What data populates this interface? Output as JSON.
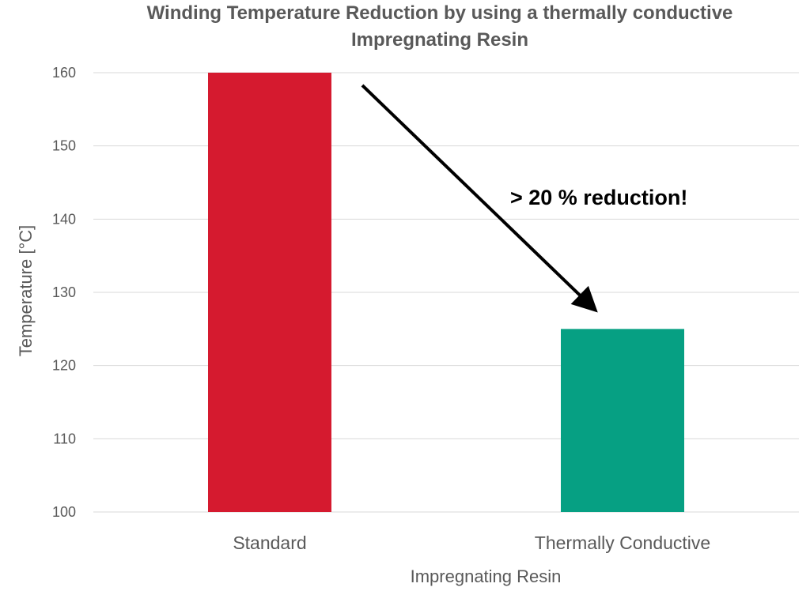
{
  "chart_data": {
    "type": "bar",
    "title_lines": [
      "Winding Temperature Reduction by using a thermally conductive",
      "Impregnating Resin"
    ],
    "xlabel": "Impregnating Resin",
    "ylabel": "Temperature [°C]",
    "categories": [
      "Standard",
      "Thermally Conductive"
    ],
    "values": [
      160,
      125
    ],
    "bar_colors": [
      "#d51a2f",
      "#06a083"
    ],
    "ylim": [
      100,
      160
    ],
    "yticks": [
      "100",
      "110",
      "120",
      "130",
      "140",
      "150",
      "160"
    ],
    "grid": true,
    "annotation": "> 20 % reduction!"
  }
}
